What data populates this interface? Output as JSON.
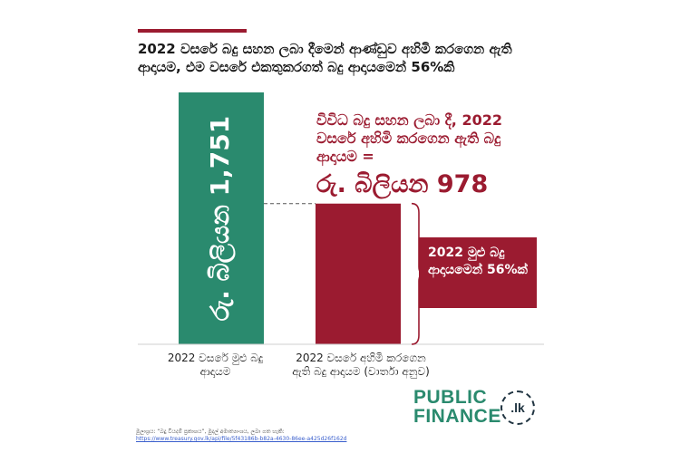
{
  "colors": {
    "green": "#2a8a6e",
    "maroon": "#9b1b30",
    "dark": "#1f3340"
  },
  "header": {
    "title": "2022 වසරේ බදු සහන ලබා දීමෙන් ආණ්ඩුව අහිමි කරගෙන ඇති ආදායම, එම වසරේ එකතුකරගත් බදු ආදායමෙන් 56%කි"
  },
  "annotation": {
    "subtitle": "විවිධ බදු සහන ලබා දී, 2022 වසරේ අහිමි කරගෙන ඇති බදු ආදායම =",
    "big_value": "රු. බිලියන 978",
    "box_text": "2022 මුළු බදු ආදායමෙන් 56%ක්"
  },
  "chart_data": {
    "type": "bar",
    "categories": [
      "2022 වසරේ මුළු බදු ආදායම",
      "2022 වසරේ අහිමි කරගෙන ඇති බදු ආදායම (වාර්තා අනුව)"
    ],
    "values": [
      1751,
      978
    ],
    "unit": "රු. බිලියන",
    "bar_labels": [
      "රු. බිලියන 1,751",
      ""
    ],
    "share_percent": 56
  },
  "source": {
    "label": "මූලාශ්‍රය: “බදු වියදම් ප්‍රකාශය”, මුදල් අමාත්‍යාංශය, ලබා ගත හැකි:",
    "url": "https://www.treasury.gov.lk/api/file/5f43186b-b82a-4630-86ee-a425d26f162d"
  },
  "logo": {
    "line1": "PUBLIC",
    "line2": "FINANCE",
    "badge": ".lk"
  }
}
